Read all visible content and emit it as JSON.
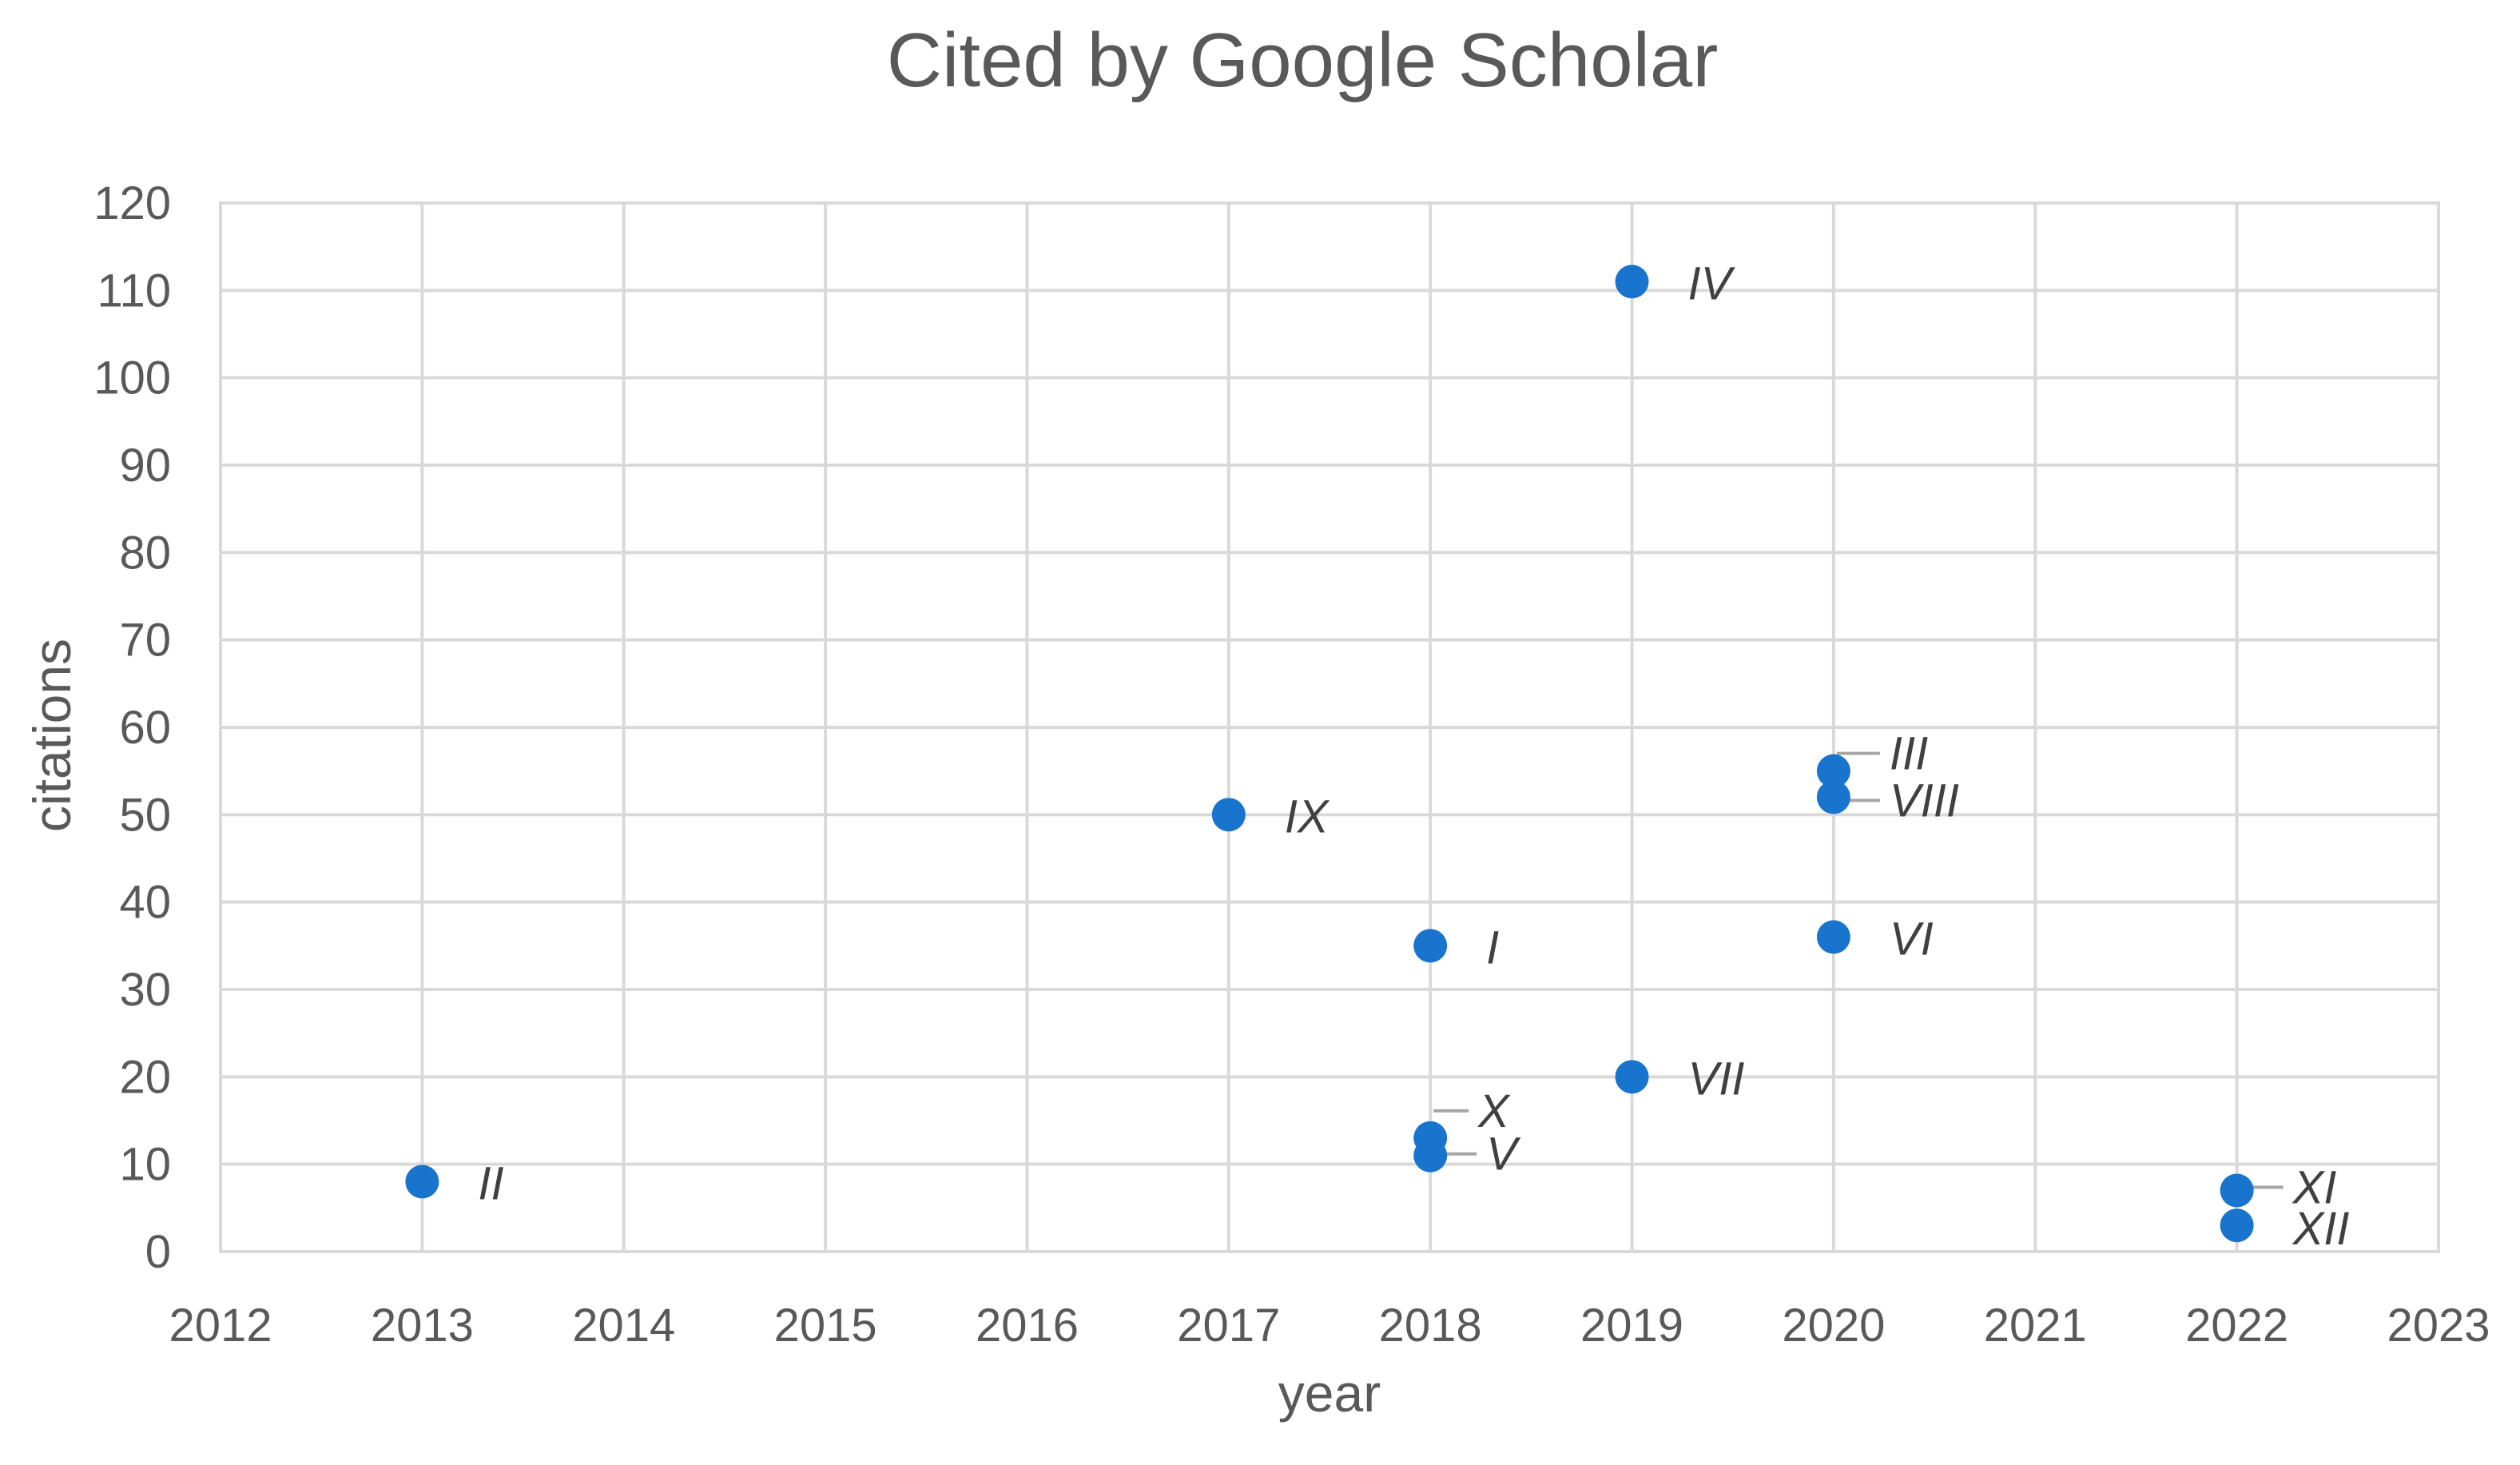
{
  "chart_data": {
    "type": "scatter",
    "title": "Cited by Google Scholar",
    "xlabel": "year",
    "ylabel": "citations",
    "xlim": [
      2012,
      2023
    ],
    "ylim": [
      0,
      120
    ],
    "x_ticks": [
      2012,
      2013,
      2014,
      2015,
      2016,
      2017,
      2018,
      2019,
      2020,
      2021,
      2022,
      2023
    ],
    "y_ticks": [
      0,
      10,
      20,
      30,
      40,
      50,
      60,
      70,
      80,
      90,
      100,
      110,
      120
    ],
    "grid": true,
    "marker_color": "#1874CD",
    "points": [
      {
        "label": "I",
        "x": 2018,
        "y": 35
      },
      {
        "label": "II",
        "x": 2013,
        "y": 8
      },
      {
        "label": "III",
        "x": 2020,
        "y": 55
      },
      {
        "label": "IV",
        "x": 2019,
        "y": 111
      },
      {
        "label": "V",
        "x": 2018,
        "y": 11
      },
      {
        "label": "VI",
        "x": 2020,
        "y": 36
      },
      {
        "label": "VII",
        "x": 2019,
        "y": 20
      },
      {
        "label": "VIII",
        "x": 2020,
        "y": 52
      },
      {
        "label": "IX",
        "x": 2017,
        "y": 50
      },
      {
        "label": "X",
        "x": 2018,
        "y": 13
      },
      {
        "label": "XI",
        "x": 2022,
        "y": 7
      },
      {
        "label": "XII",
        "x": 2022,
        "y": 3
      }
    ]
  }
}
